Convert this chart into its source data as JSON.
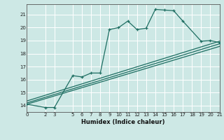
{
  "xlabel": "Humidex (Indice chaleur)",
  "xlim": [
    0,
    21
  ],
  "ylim": [
    13.5,
    21.8
  ],
  "xticks": [
    0,
    2,
    3,
    5,
    6,
    7,
    8,
    9,
    10,
    11,
    12,
    13,
    14,
    15,
    16,
    17,
    18,
    19,
    20,
    21
  ],
  "yticks": [
    14,
    15,
    16,
    17,
    18,
    19,
    20,
    21
  ],
  "bg_color": "#cde8e5",
  "grid_color": "#b8d8d5",
  "line_color": "#1e6e62",
  "line1_x": [
    0,
    2,
    3,
    5,
    6,
    7,
    8,
    9,
    10,
    11,
    12,
    13,
    14,
    15,
    16,
    17,
    19,
    20,
    21
  ],
  "line1_y": [
    14.1,
    13.85,
    13.85,
    16.3,
    16.2,
    16.5,
    16.5,
    19.85,
    20.0,
    20.5,
    19.85,
    19.95,
    21.4,
    21.35,
    21.3,
    20.5,
    18.95,
    19.0,
    18.85
  ],
  "line2_x": [
    0,
    21
  ],
  "line2_y": [
    14.1,
    18.55
  ],
  "line3_x": [
    0,
    21
  ],
  "line3_y": [
    14.2,
    18.75
  ],
  "line4_x": [
    0,
    21
  ],
  "line4_y": [
    14.35,
    18.95
  ]
}
